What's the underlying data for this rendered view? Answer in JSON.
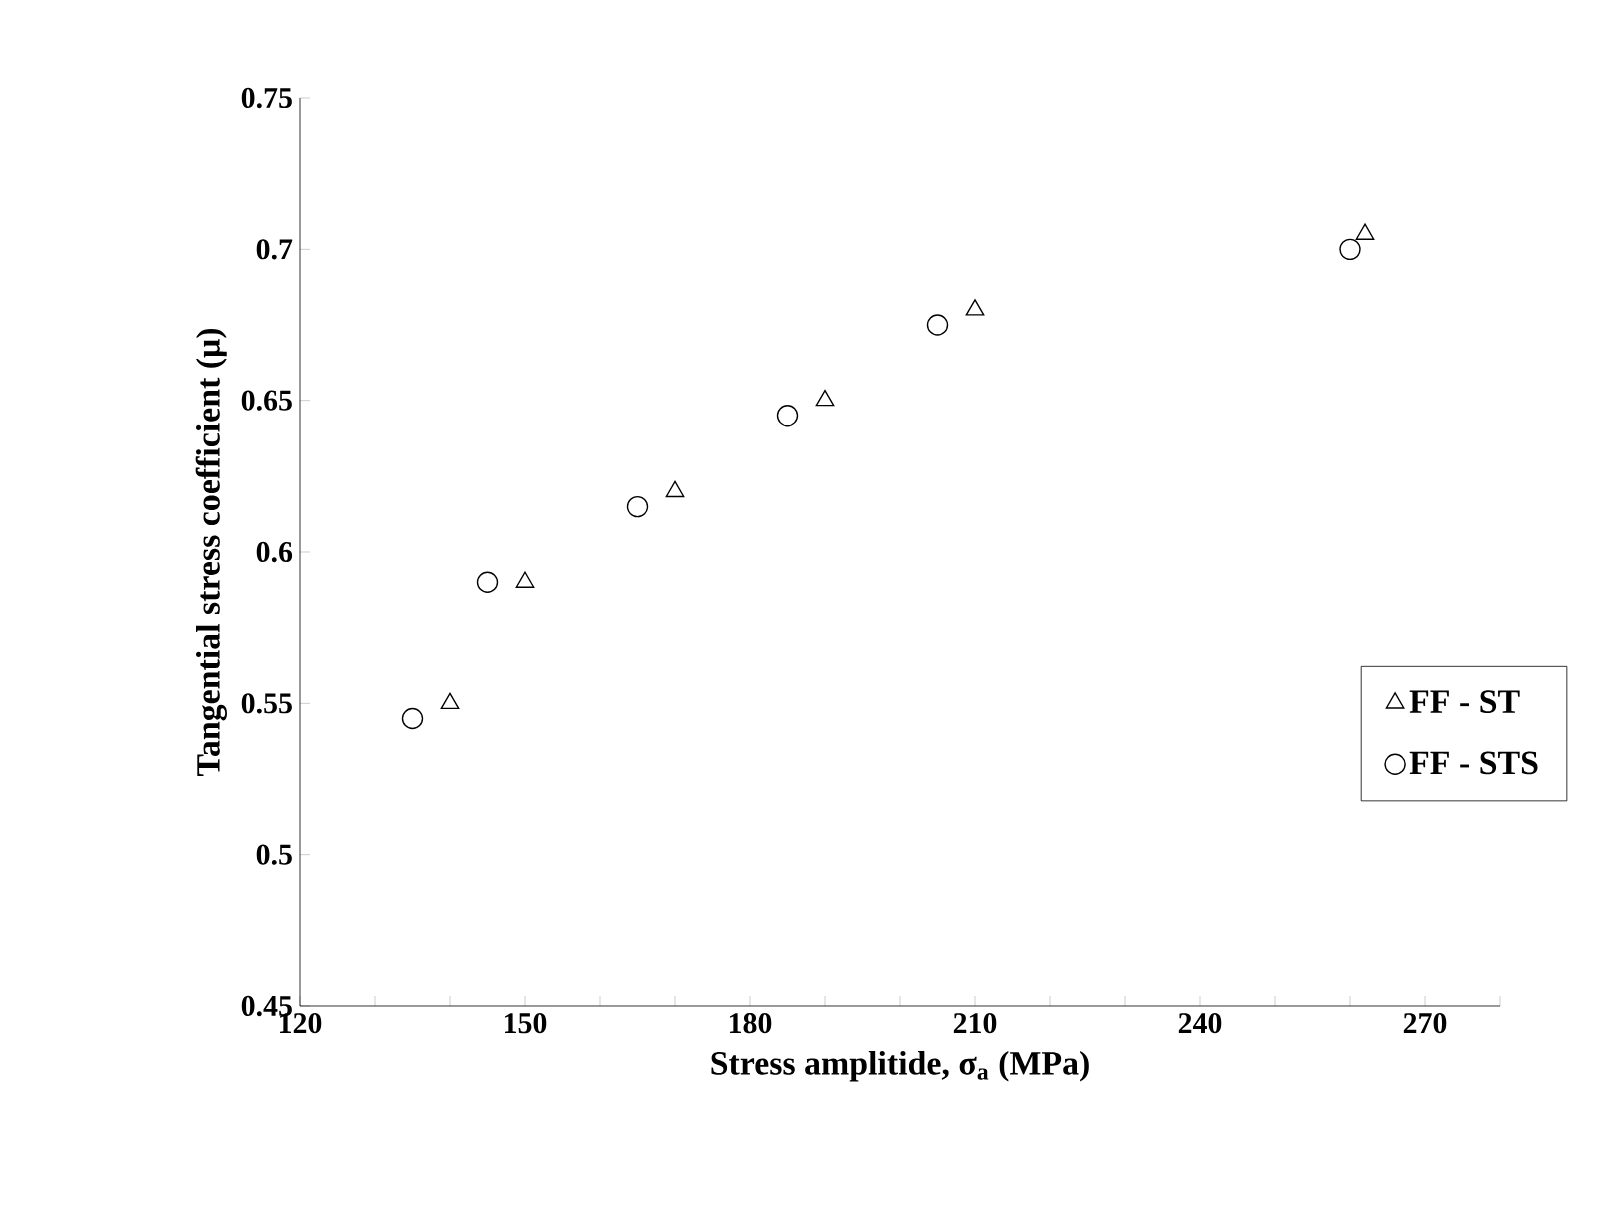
{
  "chart_data": {
    "type": "scatter",
    "xlabel": "Stress amplitide, σ$_{a}$ (MPa)",
    "ylabel": "Tangential stress coefficient (μ)",
    "xlim": [
      120,
      280
    ],
    "ylim": [
      0.45,
      0.75
    ],
    "xticks": [
      120,
      {
        "value": 130,
        "label": null
      },
      {
        "value": 140,
        "label": null
      },
      150,
      {
        "value": 160,
        "label": null
      },
      {
        "value": 170,
        "label": null
      },
      180,
      {
        "value": 190,
        "label": null
      },
      {
        "value": 200,
        "label": null
      },
      210,
      {
        "value": 220,
        "label": null
      },
      {
        "value": 230,
        "label": null
      },
      240,
      {
        "value": 250,
        "label": null
      },
      {
        "value": 260,
        "label": null
      },
      270,
      {
        "value": 280,
        "label": null
      }
    ],
    "yticks": [
      0.45,
      0.5,
      0.55,
      0.6,
      0.65,
      0.7,
      0.75
    ],
    "grid": false,
    "legend": "right",
    "series": [
      {
        "name": "FF - ST",
        "color": "#000000",
        "marker": "triangle",
        "x": [
          140,
          150,
          170,
          190,
          210,
          262
        ],
        "values": [
          0.55,
          0.59,
          0.62,
          0.65,
          0.68,
          0.705
        ]
      },
      {
        "name": "FF - STS",
        "color": "#000000",
        "marker": "circle",
        "x": [
          135,
          145,
          165,
          185,
          205,
          260
        ],
        "values": [
          0.545,
          0.59,
          0.615,
          0.645,
          0.675,
          0.7
        ]
      }
    ]
  }
}
